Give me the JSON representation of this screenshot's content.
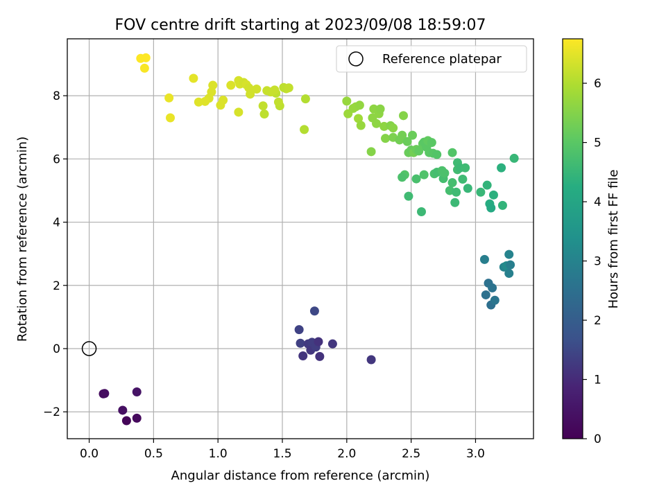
{
  "chart_data": {
    "type": "scatter",
    "title": "FOV centre drift starting at 2023/09/08 18:59:07",
    "xlabel": "Angular distance from reference (arcmin)",
    "ylabel": "Rotation from reference (arcmin)",
    "xlim": [
      -0.17,
      3.45
    ],
    "ylim": [
      -2.85,
      9.8
    ],
    "xticks": [
      0.0,
      0.5,
      1.0,
      1.5,
      2.0,
      2.5,
      3.0
    ],
    "xtick_labels": [
      "0.0",
      "0.5",
      "1.0",
      "1.5",
      "2.0",
      "2.5",
      "3.0"
    ],
    "yticks": [
      -2,
      0,
      2,
      4,
      6,
      8
    ],
    "ytick_labels": [
      "−2",
      "0",
      "2",
      "4",
      "6",
      "8"
    ],
    "grid": true,
    "legend": {
      "position": "top-right",
      "entries": [
        "Reference platepar"
      ]
    },
    "reference_point": {
      "x": 0.0,
      "y": 0.0
    },
    "colorbar": {
      "label": "Hours from first FF file",
      "colormap": "viridis",
      "range": [
        0,
        6.75
      ],
      "ticks": [
        0,
        1,
        2,
        3,
        4,
        5,
        6
      ],
      "tick_labels": [
        "0",
        "1",
        "2",
        "3",
        "4",
        "5",
        "6"
      ]
    },
    "points": [
      {
        "x": 0.11,
        "y": -1.43,
        "hours": 0.25
      },
      {
        "x": 0.12,
        "y": -1.42,
        "hours": 0.3
      },
      {
        "x": 0.26,
        "y": -1.95,
        "hours": 0.35
      },
      {
        "x": 0.29,
        "y": -2.28,
        "hours": 0.1
      },
      {
        "x": 0.37,
        "y": -1.37,
        "hours": 0.45
      },
      {
        "x": 0.37,
        "y": -2.2,
        "hours": 0.2
      },
      {
        "x": 1.63,
        "y": 0.6,
        "hours": 1.4
      },
      {
        "x": 1.64,
        "y": 0.17,
        "hours": 1.35
      },
      {
        "x": 1.66,
        "y": -0.23,
        "hours": 1.15
      },
      {
        "x": 1.7,
        "y": 0.15,
        "hours": 1.25
      },
      {
        "x": 1.72,
        "y": -0.05,
        "hours": 1.2
      },
      {
        "x": 1.73,
        "y": 0.2,
        "hours": 1.3
      },
      {
        "x": 1.75,
        "y": 1.19,
        "hours": 1.5
      },
      {
        "x": 1.76,
        "y": 0.05,
        "hours": 1.3
      },
      {
        "x": 1.78,
        "y": 0.22,
        "hours": 1.1
      },
      {
        "x": 1.79,
        "y": -0.25,
        "hours": 1.1
      },
      {
        "x": 1.89,
        "y": 0.15,
        "hours": 1.2
      },
      {
        "x": 2.19,
        "y": -0.35,
        "hours": 1.2
      },
      {
        "x": 3.07,
        "y": 2.82,
        "hours": 2.85
      },
      {
        "x": 3.08,
        "y": 1.7,
        "hours": 2.5
      },
      {
        "x": 3.1,
        "y": 2.07,
        "hours": 2.5
      },
      {
        "x": 3.12,
        "y": 1.38,
        "hours": 2.45
      },
      {
        "x": 3.13,
        "y": 1.92,
        "hours": 2.55
      },
      {
        "x": 3.15,
        "y": 1.53,
        "hours": 2.6
      },
      {
        "x": 3.22,
        "y": 2.58,
        "hours": 3.0
      },
      {
        "x": 3.24,
        "y": 2.62,
        "hours": 3.2
      },
      {
        "x": 3.26,
        "y": 2.98,
        "hours": 3.0
      },
      {
        "x": 3.26,
        "y": 2.38,
        "hours": 2.9
      },
      {
        "x": 3.27,
        "y": 2.65,
        "hours": 2.85
      },
      {
        "x": 2.84,
        "y": 4.62,
        "hours": 4.55
      },
      {
        "x": 2.94,
        "y": 5.07,
        "hours": 4.5
      },
      {
        "x": 3.04,
        "y": 4.95,
        "hours": 4.5
      },
      {
        "x": 3.09,
        "y": 5.17,
        "hours": 4.4
      },
      {
        "x": 3.11,
        "y": 4.58,
        "hours": 4.2
      },
      {
        "x": 3.12,
        "y": 4.45,
        "hours": 4.1
      },
      {
        "x": 3.14,
        "y": 4.86,
        "hours": 4.3
      },
      {
        "x": 3.2,
        "y": 5.72,
        "hours": 4.3
      },
      {
        "x": 3.21,
        "y": 4.53,
        "hours": 4.4
      },
      {
        "x": 3.3,
        "y": 6.02,
        "hours": 4.5
      },
      {
        "x": 2.45,
        "y": 5.5,
        "hours": 4.9
      },
      {
        "x": 2.43,
        "y": 5.42,
        "hours": 4.8
      },
      {
        "x": 2.48,
        "y": 4.82,
        "hours": 4.6
      },
      {
        "x": 2.54,
        "y": 5.37,
        "hours": 4.75
      },
      {
        "x": 2.58,
        "y": 4.33,
        "hours": 4.55
      },
      {
        "x": 2.6,
        "y": 5.5,
        "hours": 4.85
      },
      {
        "x": 2.68,
        "y": 5.53,
        "hours": 4.75
      },
      {
        "x": 2.7,
        "y": 5.58,
        "hours": 4.7
      },
      {
        "x": 2.74,
        "y": 5.63,
        "hours": 4.8
      },
      {
        "x": 2.75,
        "y": 5.38,
        "hours": 4.7
      },
      {
        "x": 2.76,
        "y": 5.55,
        "hours": 4.8
      },
      {
        "x": 2.8,
        "y": 5.0,
        "hours": 4.7
      },
      {
        "x": 2.82,
        "y": 5.25,
        "hours": 4.7
      },
      {
        "x": 2.85,
        "y": 4.95,
        "hours": 4.6
      },
      {
        "x": 2.86,
        "y": 5.88,
        "hours": 4.6
      },
      {
        "x": 2.86,
        "y": 5.66,
        "hours": 4.65
      },
      {
        "x": 2.88,
        "y": 5.72,
        "hours": 4.55
      },
      {
        "x": 2.9,
        "y": 5.36,
        "hours": 4.6
      },
      {
        "x": 2.92,
        "y": 5.72,
        "hours": 4.6
      },
      {
        "x": 2.82,
        "y": 6.2,
        "hours": 4.9
      },
      {
        "x": 2.19,
        "y": 6.23,
        "hours": 5.5
      },
      {
        "x": 2.3,
        "y": 6.65,
        "hours": 5.5
      },
      {
        "x": 2.36,
        "y": 6.68,
        "hours": 5.4
      },
      {
        "x": 2.41,
        "y": 6.6,
        "hours": 5.3
      },
      {
        "x": 2.43,
        "y": 6.75,
        "hours": 5.3
      },
      {
        "x": 2.44,
        "y": 7.37,
        "hours": 5.5
      },
      {
        "x": 2.47,
        "y": 6.55,
        "hours": 5.2
      },
      {
        "x": 2.48,
        "y": 6.2,
        "hours": 5.2
      },
      {
        "x": 2.5,
        "y": 6.28,
        "hours": 5.15
      },
      {
        "x": 2.51,
        "y": 6.75,
        "hours": 5.2
      },
      {
        "x": 2.52,
        "y": 6.2,
        "hours": 5.3
      },
      {
        "x": 2.54,
        "y": 6.3,
        "hours": 5.2
      },
      {
        "x": 2.56,
        "y": 6.25,
        "hours": 5.1
      },
      {
        "x": 2.59,
        "y": 6.48,
        "hours": 5.1
      },
      {
        "x": 2.6,
        "y": 6.53,
        "hours": 5.0
      },
      {
        "x": 2.62,
        "y": 6.37,
        "hours": 5.0
      },
      {
        "x": 2.63,
        "y": 6.58,
        "hours": 5.1
      },
      {
        "x": 2.64,
        "y": 6.2,
        "hours": 5.0
      },
      {
        "x": 2.66,
        "y": 6.52,
        "hours": 5.0
      },
      {
        "x": 2.67,
        "y": 6.18,
        "hours": 4.95
      },
      {
        "x": 2.7,
        "y": 6.14,
        "hours": 4.9
      },
      {
        "x": 2.0,
        "y": 7.83,
        "hours": 5.7
      },
      {
        "x": 2.01,
        "y": 7.43,
        "hours": 5.75
      },
      {
        "x": 2.05,
        "y": 7.6,
        "hours": 5.7
      },
      {
        "x": 2.07,
        "y": 7.65,
        "hours": 5.7
      },
      {
        "x": 2.09,
        "y": 7.28,
        "hours": 5.8
      },
      {
        "x": 2.1,
        "y": 7.7,
        "hours": 5.65
      },
      {
        "x": 2.11,
        "y": 7.06,
        "hours": 5.7
      },
      {
        "x": 2.2,
        "y": 7.3,
        "hours": 5.6
      },
      {
        "x": 2.21,
        "y": 7.58,
        "hours": 5.6
      },
      {
        "x": 2.23,
        "y": 7.12,
        "hours": 5.6
      },
      {
        "x": 2.25,
        "y": 7.43,
        "hours": 5.6
      },
      {
        "x": 2.26,
        "y": 7.58,
        "hours": 5.55
      },
      {
        "x": 2.29,
        "y": 7.03,
        "hours": 5.6
      },
      {
        "x": 2.34,
        "y": 7.05,
        "hours": 5.5
      },
      {
        "x": 2.36,
        "y": 6.98,
        "hours": 5.55
      },
      {
        "x": 1.67,
        "y": 6.93,
        "hours": 6.0
      },
      {
        "x": 1.68,
        "y": 7.9,
        "hours": 6.0
      },
      {
        "x": 1.53,
        "y": 8.22,
        "hours": 6.15
      },
      {
        "x": 1.51,
        "y": 8.26,
        "hours": 6.1
      },
      {
        "x": 1.55,
        "y": 8.25,
        "hours": 6.15
      },
      {
        "x": 1.48,
        "y": 7.68,
        "hours": 6.1
      },
      {
        "x": 1.47,
        "y": 7.8,
        "hours": 6.15
      },
      {
        "x": 1.45,
        "y": 8.08,
        "hours": 6.1
      },
      {
        "x": 1.44,
        "y": 8.18,
        "hours": 6.2
      },
      {
        "x": 1.41,
        "y": 8.12,
        "hours": 6.2
      },
      {
        "x": 1.38,
        "y": 8.16,
        "hours": 6.2
      },
      {
        "x": 1.35,
        "y": 7.68,
        "hours": 6.15
      },
      {
        "x": 1.36,
        "y": 7.42,
        "hours": 6.1
      },
      {
        "x": 1.16,
        "y": 8.48,
        "hours": 6.35
      },
      {
        "x": 1.17,
        "y": 8.37,
        "hours": 6.35
      },
      {
        "x": 1.2,
        "y": 8.42,
        "hours": 6.3
      },
      {
        "x": 1.22,
        "y": 8.35,
        "hours": 6.35
      },
      {
        "x": 1.24,
        "y": 8.25,
        "hours": 6.3
      },
      {
        "x": 1.25,
        "y": 8.05,
        "hours": 6.3
      },
      {
        "x": 1.3,
        "y": 8.21,
        "hours": 6.3
      },
      {
        "x": 1.16,
        "y": 7.48,
        "hours": 6.35
      },
      {
        "x": 1.1,
        "y": 8.33,
        "hours": 6.4
      },
      {
        "x": 1.02,
        "y": 7.7,
        "hours": 6.4
      },
      {
        "x": 1.04,
        "y": 7.86,
        "hours": 6.4
      },
      {
        "x": 0.96,
        "y": 8.33,
        "hours": 6.4
      },
      {
        "x": 0.95,
        "y": 8.12,
        "hours": 6.4
      },
      {
        "x": 0.93,
        "y": 7.92,
        "hours": 6.4
      },
      {
        "x": 0.9,
        "y": 7.82,
        "hours": 6.45
      },
      {
        "x": 0.85,
        "y": 7.8,
        "hours": 6.45
      },
      {
        "x": 0.81,
        "y": 8.55,
        "hours": 6.5
      },
      {
        "x": 0.62,
        "y": 7.93,
        "hours": 6.55
      },
      {
        "x": 0.63,
        "y": 7.3,
        "hours": 6.55
      },
      {
        "x": 0.4,
        "y": 9.18,
        "hours": 6.75
      },
      {
        "x": 0.44,
        "y": 9.2,
        "hours": 6.75
      },
      {
        "x": 0.43,
        "y": 8.87,
        "hours": 6.7
      }
    ]
  }
}
